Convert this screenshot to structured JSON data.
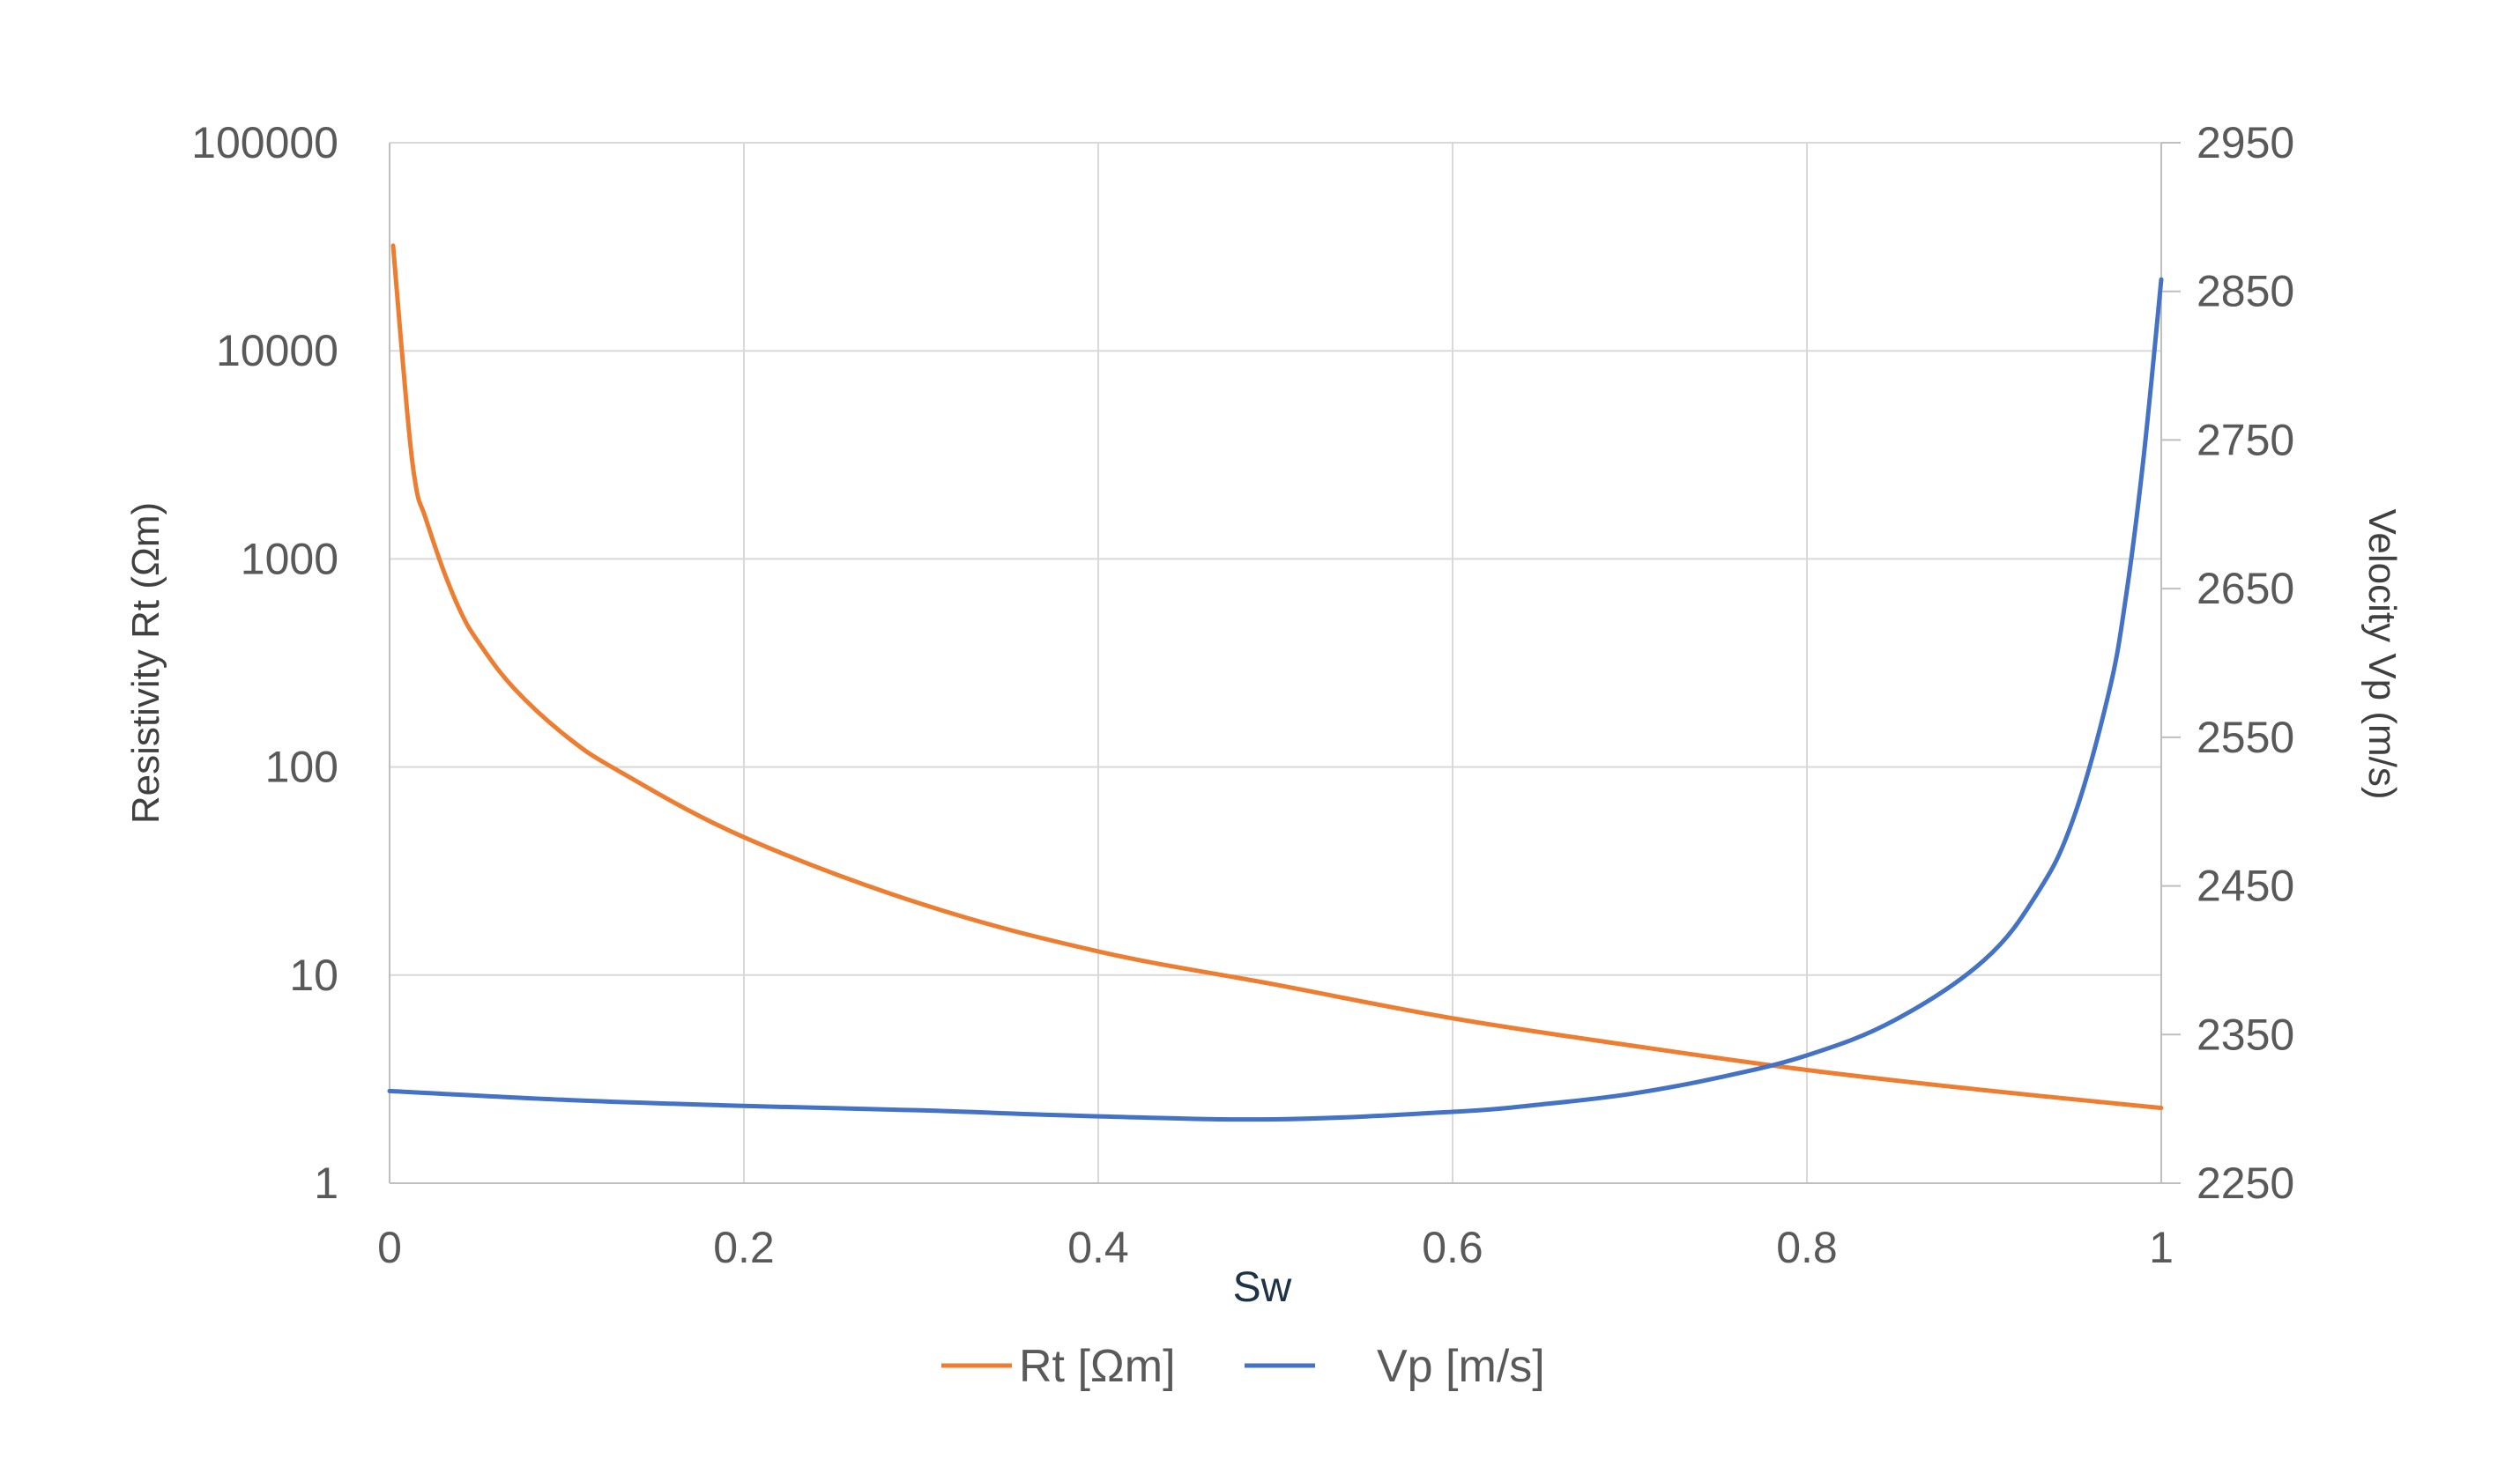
{
  "chart_data": {
    "type": "line",
    "title": "",
    "xlabel": "Sw",
    "ylabel_left": "Resistivity Rt (Ωm)",
    "ylabel_right": "Velocity Vp (m/s)",
    "xlim": [
      0,
      1
    ],
    "ylim_left": [
      1,
      100000
    ],
    "ylim_right": [
      2250,
      2950
    ],
    "yscale_left": "log",
    "grid": true,
    "legend_position": "bottom",
    "x_ticks": [
      "0",
      "0.2",
      "0.4",
      "0.6",
      "0.8",
      "1"
    ],
    "y_left_ticks": [
      "1",
      "10",
      "100",
      "1000",
      "10000",
      "100000"
    ],
    "y_right_ticks": [
      "2250",
      "2350",
      "2450",
      "2550",
      "2650",
      "2750",
      "2850",
      "2950"
    ],
    "series": [
      {
        "name": "Rt [Ωm]",
        "axis": "left",
        "color": "#ed7d31",
        "x": [
          0.002,
          0.01,
          0.015,
          0.02,
          0.03,
          0.04,
          0.05,
          0.07,
          0.1,
          0.13,
          0.2,
          0.3,
          0.4,
          0.5,
          0.6,
          0.7,
          0.8,
          0.9,
          1.0
        ],
        "y": [
          32000,
          5000,
          2200,
          1600,
          900,
          560,
          400,
          240,
          140,
          95,
          46,
          22,
          13,
          9,
          6.2,
          4.6,
          3.5,
          2.8,
          2.3
        ]
      },
      {
        "name": "Vp [m/s]",
        "axis": "right",
        "color": "#4472c4",
        "x": [
          0,
          0.1,
          0.2,
          0.3,
          0.4,
          0.5,
          0.6,
          0.65,
          0.7,
          0.75,
          0.8,
          0.85,
          0.9,
          0.93,
          0.95,
          0.97,
          0.98,
          0.99,
          1.0
        ],
        "y": [
          2312,
          2306,
          2302,
          2299,
          2295,
          2293,
          2298,
          2303,
          2310,
          2321,
          2336,
          2360,
          2400,
          2445,
          2494,
          2578,
          2644,
          2738,
          2858
        ]
      }
    ]
  }
}
